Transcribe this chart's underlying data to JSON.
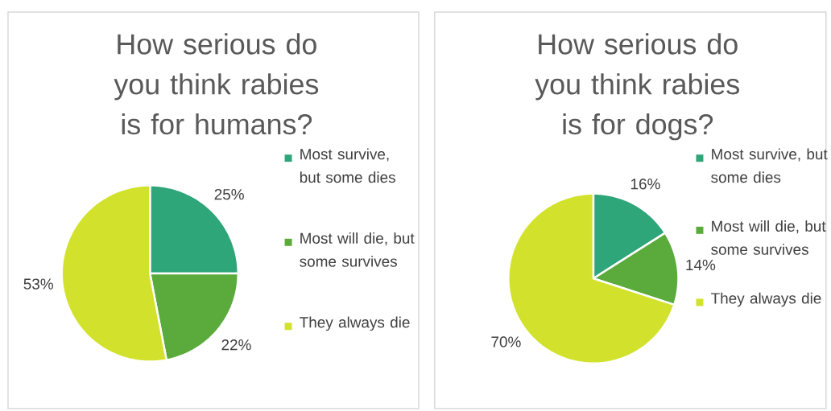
{
  "chart_data": [
    {
      "type": "pie",
      "title": "How serious do you think rabies is for humans?",
      "categories": [
        "Most survive, but some dies",
        "Most will die, but some survives",
        "They always die"
      ],
      "values": [
        25,
        22,
        53
      ],
      "colors": [
        "#2fa57a",
        "#5aaa3c",
        "#d2e22c"
      ],
      "value_labels": [
        "25%",
        "22%",
        "53%"
      ],
      "legend": "right"
    },
    {
      "type": "pie",
      "title": "How serious do you think rabies is for dogs?",
      "categories": [
        "Most survive, but some dies",
        "Most will die, but some survives",
        "They always die"
      ],
      "values": [
        16,
        14,
        70
      ],
      "colors": [
        "#2fa57a",
        "#5aaa3c",
        "#d2e22c"
      ],
      "value_labels": [
        "16%",
        "14%",
        "70%"
      ],
      "legend": "right"
    }
  ]
}
